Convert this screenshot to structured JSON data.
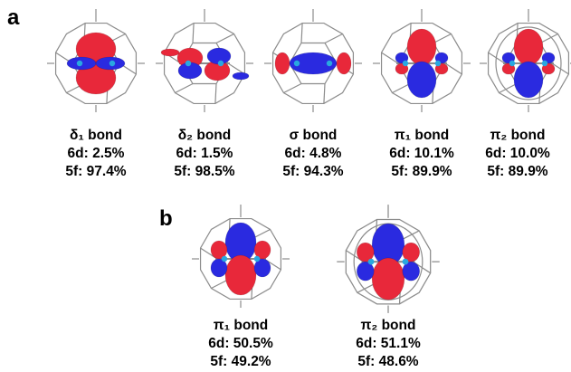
{
  "panel_a": {
    "label": "a",
    "items": [
      {
        "bond": "δ₁ bond",
        "d": "6d: 2.5%",
        "f": "5f: 97.4%",
        "orbital": "delta1"
      },
      {
        "bond": "δ₂ bond",
        "d": "6d: 1.5%",
        "f": "5f: 98.5%",
        "orbital": "delta2"
      },
      {
        "bond": "σ bond",
        "d": "6d: 4.8%",
        "f": "5f: 94.3%",
        "orbital": "sigma"
      },
      {
        "bond": "π₁ bond",
        "d": "6d: 10.1%",
        "f": "5f: 89.9%",
        "orbital": "pi1"
      },
      {
        "bond": "π₂ bond",
        "d": "6d: 10.0%",
        "f": "5f: 89.9%",
        "orbital": "pi2"
      }
    ]
  },
  "panel_b": {
    "label": "b",
    "items": [
      {
        "bond": "π₁ bond",
        "d": "6d: 50.5%",
        "f": "5f: 49.2%",
        "orbital": "pi1b"
      },
      {
        "bond": "π₂ bond",
        "d": "6d: 51.1%",
        "f": "5f: 48.6%",
        "orbital": "pi2b"
      }
    ]
  },
  "colors": {
    "positive_lobe": "#e8283a",
    "negative_lobe": "#2a2ae0",
    "cage": "#8c8c8c",
    "metal": "#29a8e0"
  }
}
